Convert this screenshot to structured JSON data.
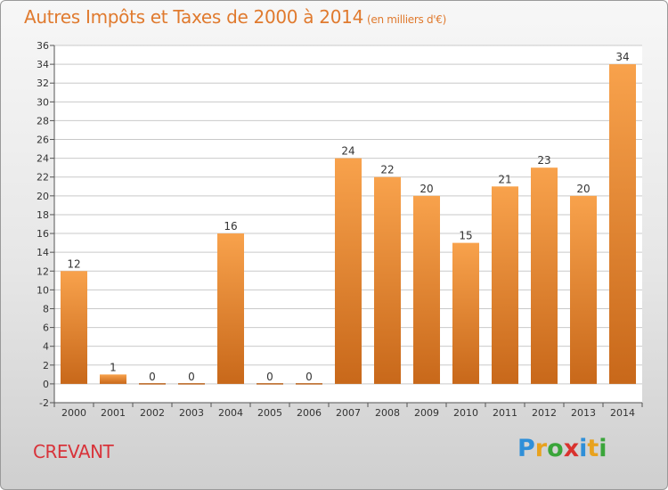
{
  "title": {
    "main": "Autres Impôts et Taxes de 2000 à 2014",
    "unit": "(en milliers d'€)"
  },
  "commune": "CREVANT",
  "logo": {
    "letters": [
      "P",
      "r",
      "o",
      "x",
      "i",
      "t",
      "i"
    ],
    "colors": [
      "#2f8fd8",
      "#e8a21e",
      "#3aa53a",
      "#d9322e",
      "#2f8fd8",
      "#e8a21e",
      "#3aa53a"
    ]
  },
  "colors": {
    "bar_top": "#f8a24c",
    "bar_bottom": "#c8681a",
    "title": "#e07a2e",
    "grid": "#c9c9c9"
  },
  "chart_data": {
    "type": "bar",
    "title": "Autres Impôts et Taxes de 2000 à 2014",
    "xlabel": "",
    "ylabel": "",
    "categories": [
      "2000",
      "2001",
      "2002",
      "2003",
      "2004",
      "2005",
      "2006",
      "2007",
      "2008",
      "2009",
      "2010",
      "2011",
      "2012",
      "2013",
      "2014"
    ],
    "values": [
      12,
      1,
      0,
      0,
      16,
      0,
      0,
      24,
      22,
      20,
      15,
      21,
      23,
      20,
      34
    ],
    "labels": [
      "12",
      "1",
      "0",
      "0",
      "16",
      "0",
      "0",
      "24",
      "22",
      "20",
      "15",
      "21",
      "23",
      "20",
      "34"
    ],
    "yticks": [
      "-2",
      "0",
      "2",
      "4",
      "6",
      "8",
      "10",
      "12",
      "14",
      "16",
      "18",
      "20",
      "22",
      "24",
      "26",
      "28",
      "30",
      "32",
      "34",
      "36"
    ],
    "ylim": [
      -2,
      36
    ],
    "grid": true,
    "legend": "none"
  }
}
